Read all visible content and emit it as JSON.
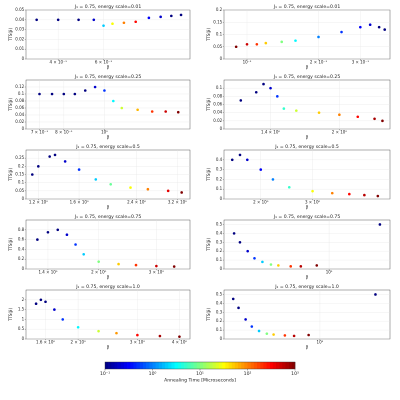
{
  "chart_data": [
    {
      "type": "scatter",
      "title": "J₁ = 0.75, energy scale=0.01",
      "xlabel": "β",
      "ylabel": "TTS(β)",
      "xlog": true,
      "grid": true,
      "xlim": [
        0.3,
        1.3
      ],
      "ylim": [
        0,
        0.05
      ],
      "xticks": [
        {
          "value": 0.4,
          "label": "4 × 10⁻¹"
        },
        {
          "value": 0.6,
          "label": "6 × 10⁻¹"
        }
      ],
      "yticks": [
        0,
        0.01,
        0.02,
        0.03,
        0.04,
        0.05
      ],
      "x": [
        0.33,
        0.4,
        0.48,
        0.55,
        0.6,
        0.65,
        0.72,
        0.8,
        0.9,
        1.0,
        1.1,
        1.2
      ],
      "y": [
        0.04,
        0.04,
        0.04,
        0.04,
        0.034,
        0.036,
        0.037,
        0.038,
        0.042,
        0.043,
        0.044,
        0.045
      ],
      "c": [
        0.1,
        0.1,
        0.1,
        0.2,
        2,
        30,
        100,
        300,
        0.3,
        0.2,
        0.1,
        0.1
      ]
    },
    {
      "type": "scatter",
      "title": "J₁ = 0.75, energy scale=0.01",
      "xlabel": "β",
      "ylabel": "TTS(β)",
      "xlog": true,
      "grid": true,
      "xlim": [
        0.08,
        0.4
      ],
      "ylim": [
        0,
        0.2
      ],
      "xticks": [
        {
          "value": 0.1,
          "label": "10⁻¹"
        },
        {
          "value": 0.2,
          "label": "2 × 10⁻¹"
        },
        {
          "value": 0.3,
          "label": "3 × 10⁻¹"
        }
      ],
      "yticks": [
        0,
        0.05,
        0.1,
        0.15,
        0.2
      ],
      "x": [
        0.09,
        0.1,
        0.11,
        0.12,
        0.14,
        0.16,
        0.2,
        0.25,
        0.3,
        0.33,
        0.36,
        0.38
      ],
      "y": [
        0.05,
        0.06,
        0.06,
        0.065,
        0.07,
        0.075,
        0.09,
        0.11,
        0.13,
        0.14,
        0.13,
        0.12
      ],
      "c": [
        1000,
        500,
        200,
        50,
        10,
        3,
        1,
        0.5,
        0.3,
        0.2,
        0.1,
        0.1
      ]
    },
    {
      "type": "scatter",
      "title": "J₁ = 0.75, energy scale=0.25",
      "xlabel": "β",
      "ylabel": "TTS(β)",
      "xlog": true,
      "grid": true,
      "xlim": [
        0.65,
        1.6
      ],
      "ylim": [
        0,
        0.14
      ],
      "xticks": [
        {
          "value": 0.7,
          "label": "7 × 10⁻¹"
        },
        {
          "value": 0.8,
          "label": "8 × 10⁻¹"
        },
        {
          "value": 1,
          "label": "10⁰"
        }
      ],
      "yticks": [
        0,
        0.02,
        0.04,
        0.06,
        0.08,
        0.1,
        0.12
      ],
      "x": [
        0.7,
        0.75,
        0.8,
        0.85,
        0.9,
        0.95,
        1.0,
        1.05,
        1.1,
        1.2,
        1.3,
        1.4,
        1.5
      ],
      "y": [
        0.1,
        0.1,
        0.1,
        0.1,
        0.11,
        0.12,
        0.11,
        0.08,
        0.06,
        0.055,
        0.05,
        0.05,
        0.048
      ],
      "c": [
        0.1,
        0.1,
        0.1,
        0.1,
        0.1,
        0.2,
        0.5,
        3,
        20,
        60,
        200,
        500,
        1000
      ]
    },
    {
      "type": "scatter",
      "title": "J₁ = 0.75, energy scale=0.25",
      "xlabel": "β",
      "ylabel": "TTS(β)",
      "xlog": true,
      "grid": true,
      "xlim": [
        1.1,
        2.6
      ],
      "ylim": [
        0,
        0.12
      ],
      "xticks": [
        {
          "value": 1.4,
          "label": "1.4 × 10⁰"
        },
        {
          "value": 2,
          "label": "2 × 10⁰"
        }
      ],
      "yticks": [
        0,
        0.02,
        0.04,
        0.06,
        0.08,
        0.1
      ],
      "x": [
        1.2,
        1.3,
        1.35,
        1.4,
        1.45,
        1.5,
        1.6,
        1.8,
        2.0,
        2.2,
        2.4,
        2.5
      ],
      "y": [
        0.07,
        0.09,
        0.11,
        0.1,
        0.08,
        0.05,
        0.045,
        0.04,
        0.035,
        0.03,
        0.025,
        0.02
      ],
      "c": [
        0.1,
        0.1,
        0.1,
        0.2,
        0.5,
        5,
        20,
        50,
        100,
        300,
        700,
        1000
      ]
    },
    {
      "type": "scatter",
      "title": "J₁ = 0.75, energy scale=0.5",
      "xlabel": "β",
      "ylabel": "TTS(β)",
      "xlog": true,
      "grid": true,
      "xlim": [
        1.1,
        3.5
      ],
      "ylim": [
        0,
        0.3
      ],
      "xticks": [
        {
          "value": 1.2,
          "label": "1.2 × 10⁰"
        },
        {
          "value": 1.6,
          "label": "1.6 × 10⁰"
        },
        {
          "value": 2.4,
          "label": "2.4 × 10⁰"
        },
        {
          "value": 3.2,
          "label": "3.2 × 10⁰"
        }
      ],
      "yticks": [
        0,
        0.05,
        0.1,
        0.15,
        0.2,
        0.25
      ],
      "x": [
        1.15,
        1.2,
        1.3,
        1.35,
        1.45,
        1.6,
        1.8,
        2.0,
        2.3,
        2.6,
        3.0,
        3.3
      ],
      "y": [
        0.15,
        0.2,
        0.26,
        0.27,
        0.23,
        0.18,
        0.12,
        0.09,
        0.07,
        0.06,
        0.05,
        0.04
      ],
      "c": [
        0.1,
        0.1,
        0.1,
        0.1,
        0.2,
        0.5,
        2,
        8,
        30,
        100,
        400,
        1000
      ]
    },
    {
      "type": "scatter",
      "title": "J₁ = 0.75, energy scale=0.5",
      "xlabel": "β",
      "ylabel": "TTS(β)",
      "xlog": true,
      "grid": true,
      "xlim": [
        1.5,
        5.5
      ],
      "ylim": [
        0,
        0.5
      ],
      "xticks": [
        {
          "value": 2,
          "label": "2 × 10⁰"
        },
        {
          "value": 3,
          "label": "3 × 10⁰"
        }
      ],
      "yticks": [
        0,
        0.1,
        0.2,
        0.3,
        0.4
      ],
      "x": [
        1.6,
        1.7,
        1.8,
        2.0,
        2.2,
        2.5,
        3,
        3.5,
        4,
        4.5,
        5
      ],
      "y": [
        0.4,
        0.45,
        0.4,
        0.3,
        0.2,
        0.12,
        0.08,
        0.06,
        0.05,
        0.04,
        0.03
      ],
      "c": [
        0.1,
        0.1,
        0.2,
        0.3,
        1,
        5,
        30,
        100,
        300,
        600,
        1000
      ]
    },
    {
      "type": "scatter",
      "title": "J₁ = 0.75, energy scale=0.75",
      "xlabel": "β",
      "ylabel": "TTS(β)",
      "xlog": true,
      "grid": true,
      "xlim": [
        1.2,
        3.8
      ],
      "ylim": [
        0,
        1.0
      ],
      "xticks": [
        {
          "value": 1.4,
          "label": "1.4 × 10⁰"
        },
        {
          "value": 2,
          "label": "2 × 10⁰"
        },
        {
          "value": 3,
          "label": "3 × 10⁰"
        }
      ],
      "yticks": [
        0,
        0.2,
        0.4,
        0.6,
        0.8
      ],
      "x": [
        1.3,
        1.4,
        1.5,
        1.6,
        1.7,
        1.8,
        2.0,
        2.3,
        2.6,
        3.0,
        3.4
      ],
      "y": [
        0.6,
        0.75,
        0.8,
        0.7,
        0.5,
        0.3,
        0.15,
        0.1,
        0.08,
        0.06,
        0.05
      ],
      "c": [
        0.1,
        0.1,
        0.1,
        0.2,
        0.5,
        2,
        10,
        50,
        200,
        500,
        1000
      ]
    },
    {
      "type": "scatter",
      "title": "J₁ = 0.75, energy scale=0.75",
      "xlabel": "β",
      "ylabel": "TTS(β)",
      "xlog": true,
      "grid": true,
      "xlim": [
        1.5,
        30
      ],
      "ylim": [
        0,
        0.55
      ],
      "xticks": [
        {
          "value": 10,
          "label": "10¹"
        }
      ],
      "yticks": [
        0,
        0.1,
        0.2,
        0.3,
        0.4,
        0.5
      ],
      "x": [
        1.8,
        2.0,
        2.3,
        2.6,
        3.0,
        3.5,
        4,
        5,
        6,
        8,
        25
      ],
      "y": [
        0.4,
        0.3,
        0.2,
        0.12,
        0.08,
        0.05,
        0.04,
        0.03,
        0.03,
        0.04,
        0.5
      ],
      "c": [
        0.1,
        0.1,
        0.2,
        0.5,
        2,
        10,
        50,
        200,
        600,
        1000,
        0.1
      ]
    },
    {
      "type": "scatter",
      "title": "J₁ = 0.75, energy scale=1.0",
      "xlabel": "β",
      "ylabel": "TTS(β)",
      "xlog": true,
      "grid": true,
      "xlim": [
        1.4,
        4.3
      ],
      "ylim": [
        0,
        2.5
      ],
      "xticks": [
        {
          "value": 1.6,
          "label": "1.6 × 10⁰"
        },
        {
          "value": 2,
          "label": "2 × 10⁰"
        },
        {
          "value": 3,
          "label": "3 × 10⁰"
        },
        {
          "value": 4,
          "label": "4 × 10⁰"
        }
      ],
      "yticks": [
        0,
        0.5,
        1.0,
        1.5,
        2.0
      ],
      "x": [
        1.5,
        1.55,
        1.6,
        1.7,
        1.8,
        2.0,
        2.3,
        2.6,
        3.0,
        3.5,
        4.0
      ],
      "y": [
        1.8,
        2.0,
        1.9,
        1.5,
        1.0,
        0.6,
        0.4,
        0.3,
        0.2,
        0.15,
        0.12
      ],
      "c": [
        0.1,
        0.1,
        0.1,
        0.2,
        0.5,
        3,
        20,
        80,
        300,
        700,
        1000
      ]
    },
    {
      "type": "scatter",
      "title": "J₁ = 0.75, energy scale=1.0",
      "xlabel": "β",
      "ylabel": "TTS(β)",
      "xlog": true,
      "grid": true,
      "xlim": [
        1.5,
        40
      ],
      "ylim": [
        0,
        0.55
      ],
      "xticks": [
        {
          "value": 10,
          "label": "10¹"
        }
      ],
      "yticks": [
        0,
        0.1,
        0.2,
        0.3,
        0.4,
        0.5
      ],
      "x": [
        1.8,
        2.0,
        2.3,
        2.6,
        3.0,
        3.5,
        4,
        5,
        6,
        8,
        30
      ],
      "y": [
        0.45,
        0.35,
        0.22,
        0.14,
        0.09,
        0.06,
        0.05,
        0.04,
        0.035,
        0.045,
        0.5
      ],
      "c": [
        0.1,
        0.1,
        0.2,
        0.5,
        2,
        10,
        50,
        200,
        600,
        1000,
        0.1
      ]
    }
  ],
  "colorbar": {
    "label": "Annealing Time [Microseconds]",
    "log": true,
    "lim": [
      0.1,
      1000
    ],
    "ticks": [
      {
        "value": 0.1,
        "label": "10⁻¹"
      },
      {
        "value": 1,
        "label": "10⁰"
      },
      {
        "value": 10,
        "label": "10¹"
      },
      {
        "value": 100,
        "label": "10²"
      },
      {
        "value": 1000,
        "label": "10³"
      }
    ]
  }
}
